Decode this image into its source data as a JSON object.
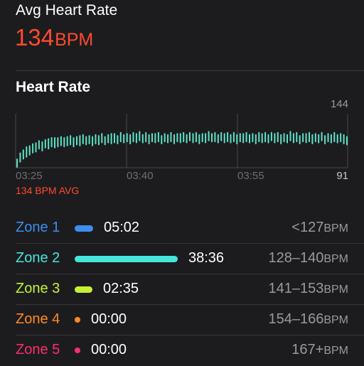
{
  "summary": {
    "title": "Avg Heart Rate",
    "value": "134",
    "unit": "BPM"
  },
  "chart_title": "Heart Rate",
  "chart_data": {
    "type": "bar",
    "series_color": "#5de3c8",
    "ylim": [
      91,
      144
    ],
    "y_tick_labels": [
      "144",
      "91"
    ],
    "x_tick_labels": [
      "03:25",
      "03:40",
      "03:55"
    ],
    "avg_label": "134 BPM AVG",
    "avg_value": 134,
    "bars": [
      [
        91,
        100
      ],
      [
        96,
        106
      ],
      [
        99,
        109
      ],
      [
        101,
        112
      ],
      [
        103,
        113
      ],
      [
        105,
        115
      ],
      [
        106,
        116
      ],
      [
        109,
        118
      ],
      [
        107,
        117
      ],
      [
        110,
        119
      ],
      [
        109,
        120
      ],
      [
        111,
        121
      ],
      [
        110,
        121
      ],
      [
        111,
        121
      ],
      [
        112,
        122
      ],
      [
        111,
        121
      ],
      [
        112,
        122
      ],
      [
        113,
        123
      ],
      [
        111,
        121
      ],
      [
        113,
        122
      ],
      [
        112,
        123
      ],
      [
        114,
        124
      ],
      [
        113,
        122
      ],
      [
        114,
        123
      ],
      [
        112,
        122
      ],
      [
        114,
        124
      ],
      [
        113,
        123
      ],
      [
        115,
        125
      ],
      [
        113,
        122
      ],
      [
        115,
        124
      ],
      [
        114,
        125
      ],
      [
        115,
        125
      ],
      [
        114,
        123
      ],
      [
        116,
        126
      ],
      [
        115,
        124
      ],
      [
        116,
        125
      ],
      [
        114,
        124
      ],
      [
        116,
        126
      ],
      [
        115,
        125
      ],
      [
        117,
        127
      ],
      [
        115,
        124
      ],
      [
        116,
        126
      ],
      [
        114,
        124
      ],
      [
        116,
        125
      ],
      [
        115,
        125
      ],
      [
        116,
        126
      ],
      [
        114,
        123
      ],
      [
        116,
        125
      ],
      [
        115,
        124
      ],
      [
        116,
        126
      ],
      [
        114,
        124
      ],
      [
        116,
        125
      ],
      [
        115,
        125
      ],
      [
        116,
        126
      ],
      [
        115,
        124
      ],
      [
        117,
        126
      ],
      [
        115,
        125
      ],
      [
        116,
        126
      ],
      [
        114,
        124
      ],
      [
        116,
        125
      ],
      [
        115,
        125
      ],
      [
        117,
        127
      ],
      [
        116,
        125
      ],
      [
        116,
        126
      ],
      [
        115,
        124
      ],
      [
        117,
        126
      ],
      [
        115,
        125
      ],
      [
        116,
        126
      ],
      [
        115,
        124
      ],
      [
        116,
        126
      ],
      [
        114,
        124
      ],
      [
        116,
        125
      ],
      [
        115,
        125
      ],
      [
        116,
        126
      ],
      [
        115,
        124
      ],
      [
        116,
        125
      ],
      [
        114,
        124
      ],
      [
        116,
        126
      ],
      [
        115,
        125
      ],
      [
        116,
        126
      ],
      [
        115,
        124
      ],
      [
        117,
        126
      ],
      [
        115,
        125
      ],
      [
        116,
        126
      ],
      [
        114,
        124
      ],
      [
        116,
        125
      ],
      [
        115,
        124
      ],
      [
        117,
        127
      ],
      [
        115,
        125
      ],
      [
        116,
        126
      ],
      [
        114,
        123
      ],
      [
        116,
        125
      ],
      [
        115,
        125
      ],
      [
        116,
        126
      ],
      [
        114,
        124
      ],
      [
        116,
        125
      ],
      [
        115,
        124
      ],
      [
        117,
        126
      ],
      [
        114,
        123
      ],
      [
        116,
        125
      ],
      [
        115,
        124
      ],
      [
        116,
        126
      ],
      [
        115,
        124
      ],
      [
        116,
        125
      ],
      [
        114,
        124
      ],
      [
        113,
        122
      ]
    ]
  },
  "zones": [
    {
      "name": "Zone 1",
      "time": "05:02",
      "range": "<127",
      "unit": "BPM",
      "color": "#3e8ef0",
      "bar_fraction": 0.18
    },
    {
      "name": "Zone 2",
      "time": "38:36",
      "range": "128–140",
      "unit": "BPM",
      "color": "#47e6da",
      "bar_fraction": 1.0
    },
    {
      "name": "Zone 3",
      "time": "02:35",
      "range": "141–153",
      "unit": "BPM",
      "color": "#c6f034",
      "bar_fraction": 0.13
    },
    {
      "name": "Zone 4",
      "time": "00:00",
      "range": "154–166",
      "unit": "BPM",
      "color": "#ff8b1e",
      "bar_fraction": 0
    },
    {
      "name": "Zone 5",
      "time": "00:00",
      "range": "167+",
      "unit": "BPM",
      "color": "#ff2d6e",
      "bar_fraction": 0
    }
  ]
}
